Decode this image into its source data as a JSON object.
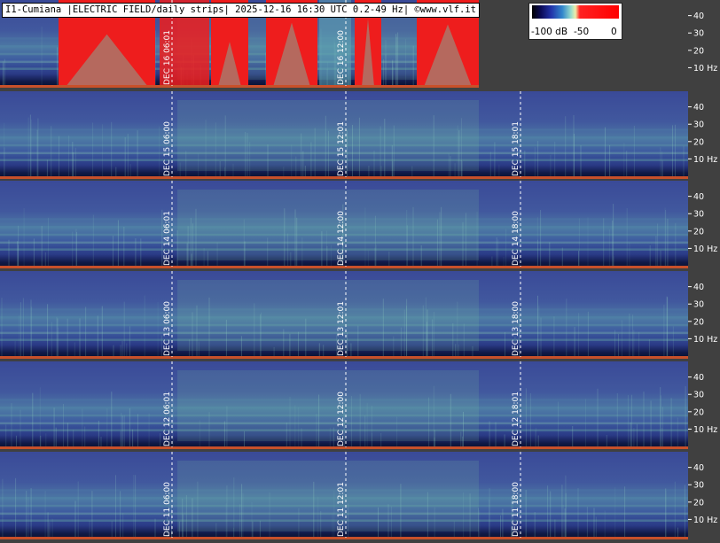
{
  "header": {
    "title": "I1-Cumiana |ELECTRIC FIELD/daily strips| 2025-12-16 16:30 UTC 0.2-49 Hz| ©www.vlf.it"
  },
  "colorbar": {
    "min_label": "-100 dB",
    "mid_label": "-50",
    "max_label": "0"
  },
  "chart_data": {
    "type": "heatmap",
    "title": "I1-Cumiana |ELECTRIC FIELD/daily strips| 2025-12-16 16:30 UTC 0.2-49 Hz| ©www.vlf.it",
    "ylabel": "Hz",
    "ylim": [
      0,
      49
    ],
    "y_ticks": [
      "40",
      "30",
      "20",
      "10 Hz"
    ],
    "colorbar": {
      "min": -100,
      "max": 0,
      "unit": "dB",
      "ticks": [
        "-100 dB",
        "-50",
        "0"
      ]
    },
    "strips": [
      {
        "day": "DEC 16",
        "markers": [
          "06:01",
          "12:00"
        ],
        "partial": true
      },
      {
        "day": "DEC 15",
        "markers": [
          "06:00",
          "12:01",
          "18:01"
        ]
      },
      {
        "day": "DEC 14",
        "markers": [
          "06:01",
          "12:00",
          "18:00"
        ]
      },
      {
        "day": "DEC 13",
        "markers": [
          "06:00",
          "12:01",
          "18:00"
        ]
      },
      {
        "day": "DEC 12",
        "markers": [
          "06:01",
          "12:00",
          "18:01"
        ]
      },
      {
        "day": "DEC 11",
        "markers": [
          "06:00",
          "12:01",
          "18:00"
        ]
      }
    ]
  }
}
